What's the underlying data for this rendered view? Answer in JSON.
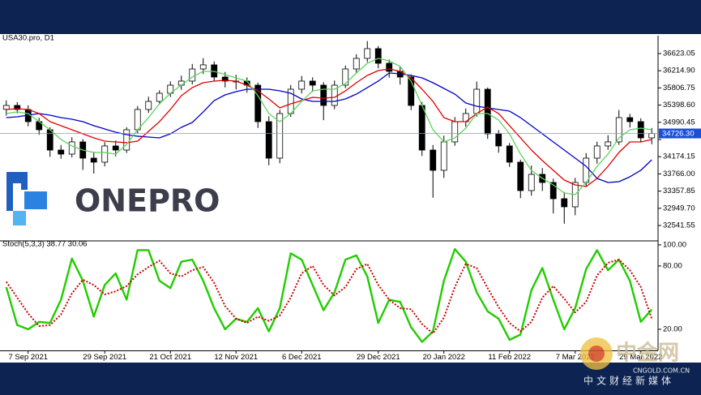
{
  "chart_data": [
    {
      "type": "candlestick",
      "title": "USA30.pro, D1",
      "x": [
        0,
        1,
        2,
        3,
        4,
        5,
        6,
        7,
        8,
        9,
        10,
        11,
        12,
        13,
        14,
        15,
        16,
        17,
        18,
        19,
        20,
        21,
        22,
        23,
        24,
        25,
        26,
        27,
        28,
        29,
        30,
        31,
        32,
        33,
        34,
        35,
        36,
        37,
        38,
        39,
        40,
        41,
        42,
        43,
        44,
        45,
        46,
        47,
        48,
        49,
        50,
        51,
        52,
        53,
        54,
        55,
        56,
        57,
        58,
        59
      ],
      "open": [
        35300,
        35391,
        35295,
        35006,
        34814,
        34332,
        34236,
        34525,
        34140,
        34044,
        34429,
        34332,
        34814,
        35295,
        35487,
        35680,
        35872,
        35969,
        36257,
        36354,
        36065,
        35969,
        35969,
        35872,
        35006,
        34140,
        35199,
        35776,
        35969,
        35872,
        35391,
        35872,
        36257,
        36508,
        36739,
        36392,
        36200,
        36065,
        35391,
        34332,
        33851,
        34525,
        35006,
        35199,
        35776,
        34717,
        34429,
        34044,
        33370,
        33755,
        33562,
        33177,
        32985,
        33562,
        34140,
        34429,
        34525,
        35102,
        35006,
        34621
      ],
      "high": [
        35511,
        35471,
        35395,
        35096,
        34874,
        34452,
        34635,
        34595,
        34290,
        34519,
        34559,
        34874,
        35375,
        35597,
        35750,
        35962,
        36099,
        36377,
        36514,
        36434,
        36185,
        36119,
        36059,
        35932,
        35136,
        35289,
        35876,
        36089,
        36059,
        35942,
        35982,
        36337,
        36608,
        36919,
        36799,
        36482,
        36310,
        36125,
        35471,
        34452,
        34675,
        35116,
        35319,
        35956,
        35816,
        34807,
        34499,
        34104,
        33965,
        33905,
        33652,
        33337,
        33672,
        34260,
        34529,
        34685,
        35282,
        35192,
        35086,
        34856
      ],
      "low": [
        35150,
        35205,
        34896,
        34694,
        34172,
        34126,
        34156,
        33860,
        33774,
        33944,
        34182,
        34262,
        34724,
        35215,
        35427,
        35590,
        35762,
        35889,
        36137,
        35965,
        35819,
        35769,
        35692,
        34856,
        33970,
        34020,
        35119,
        35676,
        35712,
        35041,
        35301,
        35802,
        36147,
        36418,
        36272,
        36050,
        35885,
        35281,
        34192,
        33201,
        33671,
        34435,
        34886,
        35129,
        34597,
        34269,
        33934,
        33190,
        33250,
        33362,
        32827,
        32585,
        32785,
        33472,
        34010,
        34339,
        34455,
        34866,
        34511,
        34471
      ],
      "close": [
        35391,
        35295,
        35006,
        34814,
        34332,
        34236,
        34525,
        34140,
        34044,
        34429,
        34332,
        34814,
        35295,
        35487,
        35680,
        35872,
        35969,
        36257,
        36354,
        36065,
        35969,
        35969,
        35872,
        35006,
        34140,
        35199,
        35776,
        35969,
        35872,
        35391,
        35872,
        36257,
        36508,
        36739,
        36392,
        36200,
        36065,
        35391,
        34332,
        33851,
        34525,
        35006,
        35199,
        35776,
        34717,
        34429,
        34044,
        33370,
        33755,
        33562,
        33177,
        32985,
        33562,
        34140,
        34429,
        34525,
        35102,
        35006,
        34621,
        34726
      ],
      "up_color": "#ffffff",
      "down_color": "#000000",
      "edge_color": "#000000",
      "series": [
        {
          "color": "#0000c8",
          "values": [
            35102,
            35122,
            35160,
            35199,
            35160,
            35102,
            35064,
            35006,
            34910,
            34833,
            34756,
            34698,
            34660,
            34640,
            34621,
            34717,
            34871,
            34987,
            35236,
            35506,
            35641,
            35718,
            35776,
            35776,
            35776,
            35737,
            35680,
            35545,
            35487,
            35487,
            35487,
            35545,
            35660,
            35814,
            35969,
            36161,
            36142,
            36103,
            36046,
            35930,
            35795,
            35660,
            35449,
            35372,
            35333,
            35295,
            35256,
            35102,
            34910,
            34717,
            34525,
            34332,
            34140,
            33947,
            33659,
            33562,
            33581,
            33697,
            33851,
            34101
          ]
        },
        {
          "color": "#e00000",
          "values": [
            35295,
            35314,
            35295,
            35199,
            35006,
            34910,
            34814,
            34717,
            34621,
            34544,
            34525,
            34506,
            34544,
            34775,
            35006,
            35295,
            35622,
            35814,
            35930,
            35969,
            35988,
            35969,
            35872,
            35737,
            35545,
            35333,
            35429,
            35506,
            35583,
            35564,
            35583,
            35737,
            35930,
            36103,
            36219,
            36257,
            36200,
            36046,
            35776,
            35487,
            35102,
            35006,
            35006,
            35199,
            35352,
            35199,
            34910,
            34621,
            34332,
            34082,
            33851,
            33620,
            33504,
            33466,
            33659,
            33947,
            34274,
            34525,
            34525,
            34582
          ]
        },
        {
          "color": "#5fd35f",
          "values": [
            35199,
            35237,
            35199,
            35006,
            34814,
            34583,
            34429,
            34332,
            34274,
            34274,
            34236,
            34467,
            34814,
            35102,
            35429,
            35680,
            35872,
            36065,
            36200,
            36200,
            36122,
            36046,
            35969,
            35622,
            35199,
            35006,
            35199,
            35487,
            35737,
            35776,
            35776,
            35911,
            36161,
            36392,
            36508,
            36450,
            36315,
            35969,
            35391,
            34814,
            34525,
            34621,
            34852,
            35199,
            35199,
            35045,
            34717,
            34236,
            33851,
            33659,
            33504,
            33312,
            33274,
            33562,
            33947,
            34236,
            34621,
            34814,
            34852,
            34814
          ]
        }
      ],
      "price_line": {
        "value": 34726.3,
        "label": "34726.30"
      },
      "xlim": [
        -0.5,
        59.5
      ],
      "ylim": [
        32195,
        37046.6
      ],
      "yticks": [
        36623.05,
        {
          "value": 36214.9,
          "label": "36214.90"
        },
        35806.75,
        {
          "value": 35398.6,
          "label": "35398.60"
        },
        34990.45,
        {
          "value": 34582.3,
          "label": "34582.30"
        },
        34174.15,
        {
          "value": 33766,
          "label": "33766.00"
        },
        33357.85,
        {
          "value": 32949.7,
          "label": "32949.70"
        },
        32541.55
      ]
    },
    {
      "type": "line",
      "title": "Stoch(5,3,3) 38.77 30.06",
      "series": [
        {
          "color": "#22cc00",
          "values": [
            60,
            24,
            20,
            27,
            26,
            48,
            87,
            66,
            32,
            62,
            73,
            48,
            95,
            95,
            66,
            59,
            84,
            86,
            66,
            40,
            20,
            30,
            27,
            40,
            18,
            40,
            92,
            86,
            62,
            38,
            55,
            86,
            90,
            70,
            26,
            48,
            46,
            22,
            8,
            18,
            66,
            96,
            84,
            55,
            37,
            30,
            10,
            15,
            57,
            78,
            48,
            20,
            40,
            77,
            95,
            76,
            86,
            66,
            27,
            38.77
          ]
        },
        {
          "color": "#cc0000",
          "style": "dotted",
          "values": [
            65,
            50,
            35,
            23,
            24,
            34,
            54,
            67,
            62,
            53,
            56,
            61,
            72,
            79,
            85,
            73,
            70,
            76,
            79,
            64,
            42,
            30,
            26,
            32,
            28,
            33,
            50,
            73,
            80,
            62,
            52,
            60,
            77,
            82,
            62,
            48,
            40,
            39,
            25,
            16,
            31,
            60,
            82,
            78,
            59,
            41,
            26,
            18,
            27,
            50,
            61,
            49,
            36,
            46,
            71,
            83,
            86,
            76,
            60,
            30.06
          ]
        }
      ],
      "xlim": [
        -0.5,
        59.5
      ],
      "ylim": [
        0,
        103
      ],
      "yticks": [
        {
          "value": 100,
          "label": "100.00"
        },
        {
          "value": 80,
          "label": "80.00"
        },
        {
          "value": 20,
          "label": "20.00"
        }
      ],
      "xticks": [
        {
          "value": 2,
          "label": "7 Sep 2021"
        },
        {
          "value": 9,
          "label": "29 Sep 2021"
        },
        {
          "value": 15,
          "label": "21 Oct 2021"
        },
        {
          "value": 21,
          "label": "12 Nov 2021"
        },
        {
          "value": 27,
          "label": "6 Dec 2021"
        },
        {
          "value": 34,
          "label": "29 Dec 2021"
        },
        {
          "value": 40,
          "label": "20 Jan 2022"
        },
        {
          "value": 46,
          "label": "11 Feb 2022"
        },
        {
          "value": 52,
          "label": "7 Mar 2022"
        },
        {
          "value": 58,
          "label": "29 Mar 2022"
        }
      ]
    }
  ],
  "overlay": {
    "logo_text": "ONEPRO",
    "watermark": {
      "name": "中金网",
      "site": "CNGOLD.COM.CN",
      "tagline": "中文财经新媒体"
    }
  }
}
